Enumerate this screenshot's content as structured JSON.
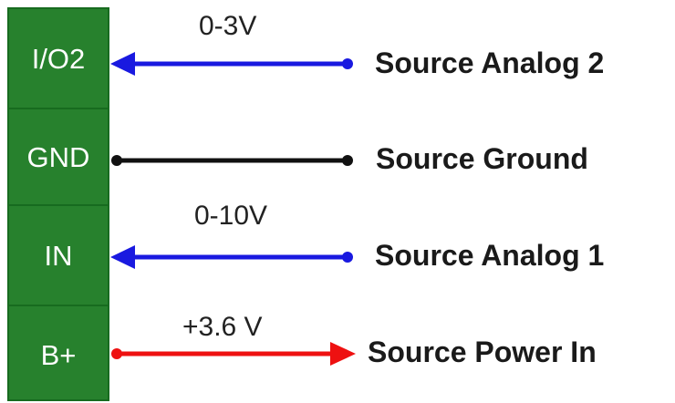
{
  "terminal_block": {
    "color": "#27812d",
    "pins": [
      {
        "label": "I/O2"
      },
      {
        "label": "GND"
      },
      {
        "label": "IN"
      },
      {
        "label": "B+"
      }
    ]
  },
  "connections": [
    {
      "voltage": "0-3V",
      "source": "Source Analog 2",
      "wire_color": "#1919e0",
      "direction": "into-terminal"
    },
    {
      "voltage": "",
      "source": "Source Ground",
      "wire_color": "#111111",
      "direction": "none"
    },
    {
      "voltage": "0-10V",
      "source": "Source Analog 1",
      "wire_color": "#1919e0",
      "direction": "into-terminal"
    },
    {
      "voltage": "+3.6 V",
      "source": "Source Power In",
      "wire_color": "#ee1111",
      "direction": "out-of-terminal"
    }
  ]
}
